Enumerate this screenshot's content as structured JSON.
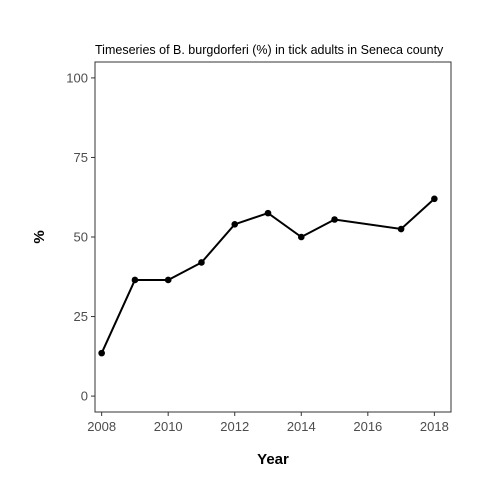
{
  "chart_data": {
    "type": "line",
    "title": "Timeseries of B. burgdorferi (%) in tick adults in Seneca county",
    "xlabel": "Year",
    "ylabel": "%",
    "xlim": [
      2007.8,
      2018.5
    ],
    "ylim": [
      -5,
      105
    ],
    "x_ticks": [
      2008,
      2010,
      2012,
      2014,
      2016,
      2018
    ],
    "y_ticks": [
      0,
      25,
      50,
      75,
      100
    ],
    "grid": false,
    "series": [
      {
        "x": [
          2008,
          2009,
          2010,
          2011,
          2012,
          2013,
          2014,
          2015,
          2017,
          2018
        ],
        "y": [
          13.5,
          36.5,
          36.5,
          42,
          54,
          57.5,
          50,
          55.5,
          52.5,
          62
        ]
      }
    ],
    "colors": {
      "line": "#000000",
      "marker": "#000000",
      "axis_text": "#4d4d4d"
    }
  }
}
